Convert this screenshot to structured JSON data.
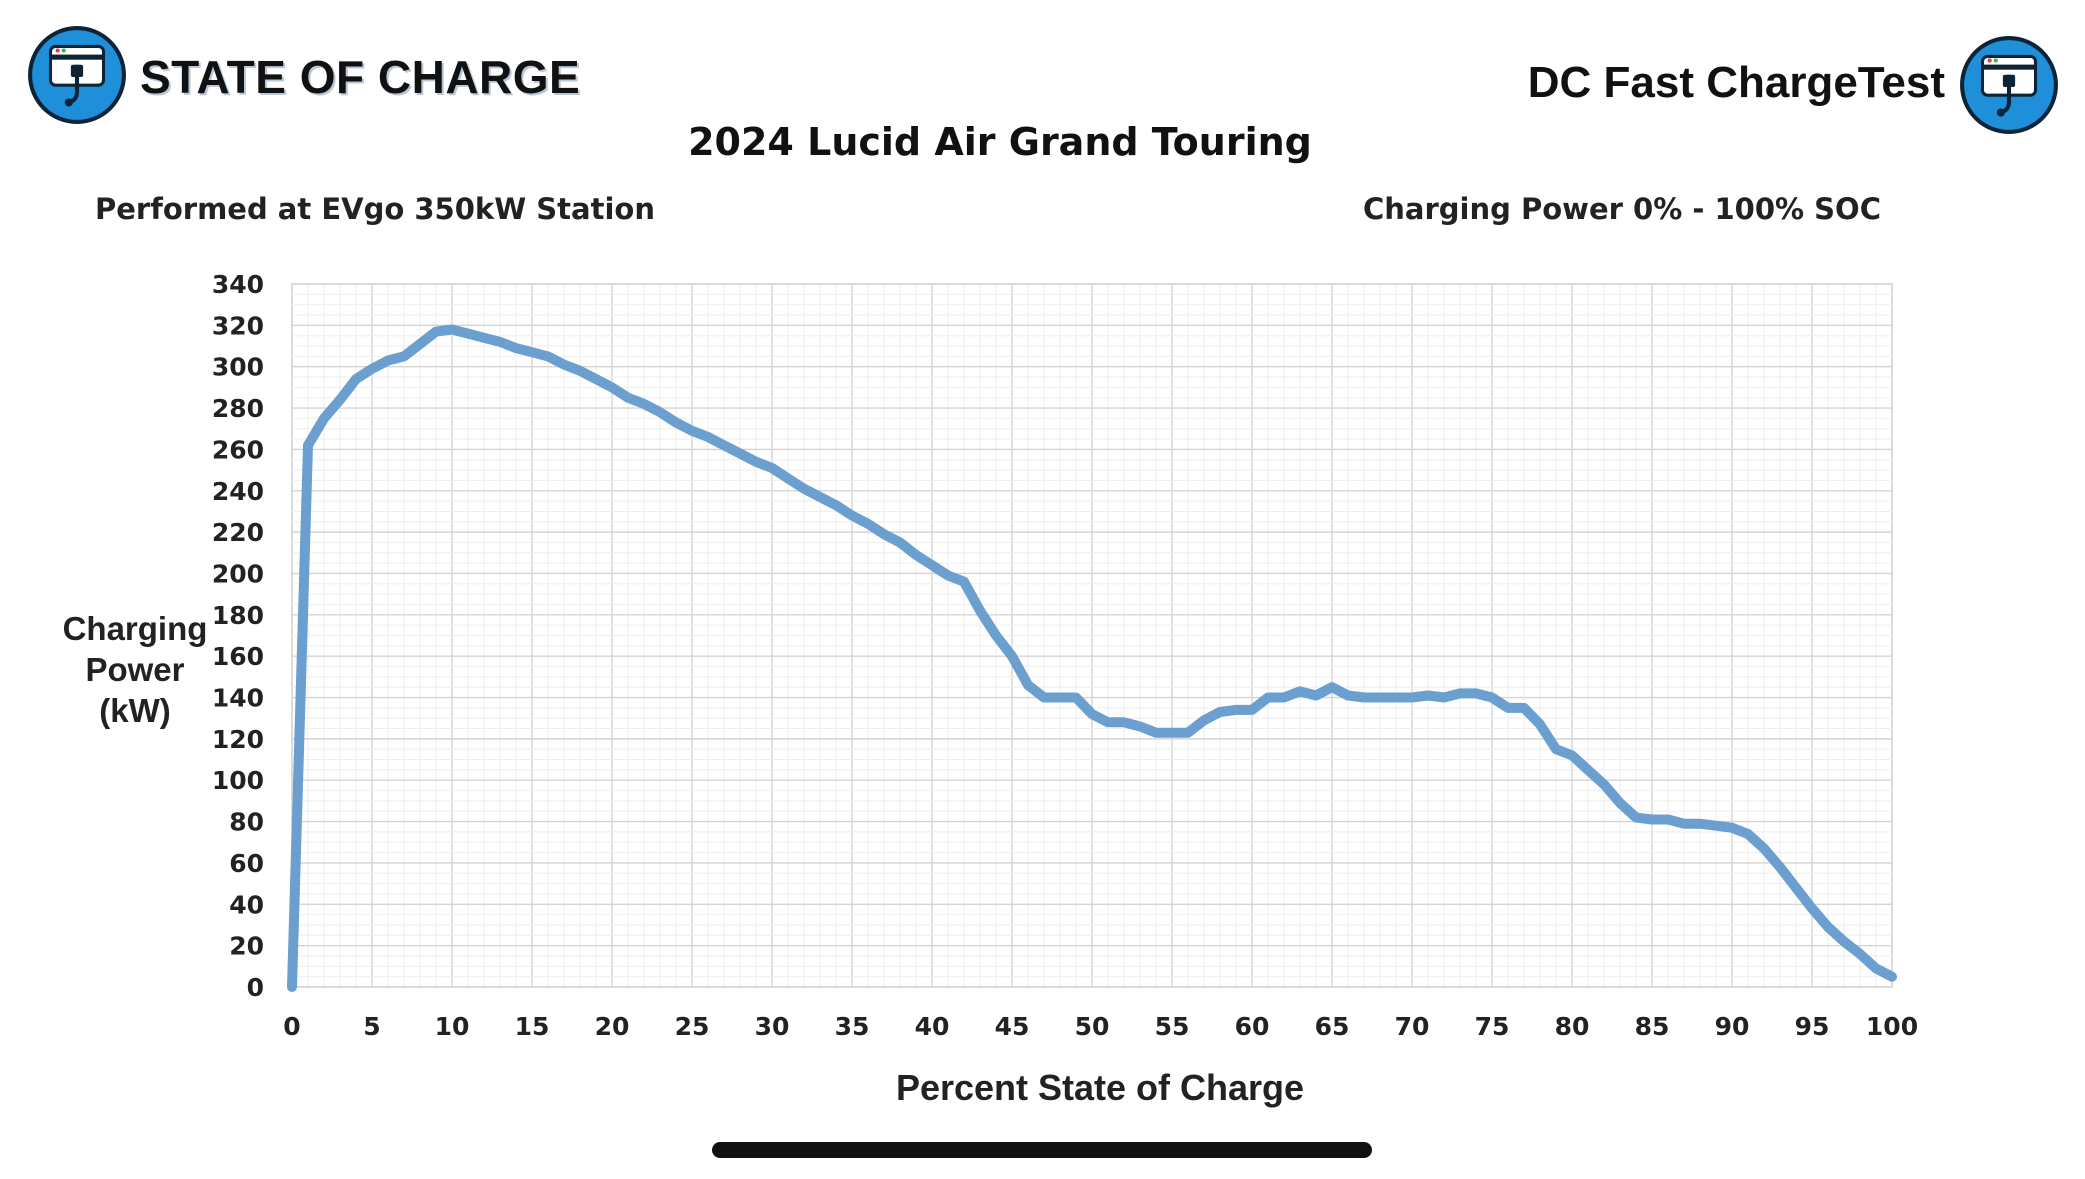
{
  "header": {
    "brand_left": "STATE OF CHARGE",
    "brand_right": "DC Fast ChargeTest",
    "logo_icon": "ev-charger-plug-icon",
    "title": "2024 Lucid Air Grand Touring",
    "subtitle_left": "Performed at EVgo 350kW Station",
    "subtitle_right": "Charging Power 0% - 100% SOC"
  },
  "colors": {
    "line": "#6a9fd0",
    "logo_ring": "#1e8fd8",
    "grid": "#dedede"
  },
  "chart_data": {
    "type": "line",
    "title": "2024 Lucid Air Grand Touring",
    "xlabel": "Percent State of Charge",
    "ylabel_lines": [
      "Charging",
      "Power",
      "(kW)"
    ],
    "xlim": [
      0,
      100
    ],
    "ylim": [
      0,
      340
    ],
    "xticks": [
      0,
      5,
      10,
      15,
      20,
      25,
      30,
      35,
      40,
      45,
      50,
      55,
      60,
      65,
      70,
      75,
      80,
      85,
      90,
      95,
      100
    ],
    "yticks": [
      0,
      20,
      40,
      60,
      80,
      100,
      120,
      140,
      160,
      180,
      200,
      220,
      240,
      260,
      280,
      300,
      320,
      340
    ],
    "grid": true,
    "series": [
      {
        "x": [
          0,
          1,
          2,
          3,
          4,
          5,
          6,
          7,
          8,
          9,
          10,
          11,
          12,
          13,
          14,
          15,
          16,
          17,
          18,
          19,
          20,
          21,
          22,
          23,
          24,
          25,
          26,
          27,
          28,
          29,
          30,
          31,
          32,
          33,
          34,
          35,
          36,
          37,
          38,
          39,
          40,
          41,
          42,
          43,
          44,
          45,
          46,
          47,
          48,
          49,
          50,
          51,
          52,
          53,
          54,
          55,
          56,
          57,
          58,
          59,
          60,
          61,
          62,
          63,
          64,
          65,
          66,
          67,
          68,
          69,
          70,
          71,
          72,
          73,
          74,
          75,
          76,
          77,
          78,
          79,
          80,
          81,
          82,
          83,
          84,
          85,
          86,
          87,
          88,
          89,
          90,
          91,
          92,
          93,
          94,
          95,
          96,
          97,
          98,
          99,
          100
        ],
        "y": [
          0,
          262,
          275,
          284,
          294,
          299,
          303,
          305,
          311,
          317,
          318,
          316,
          314,
          312,
          309,
          307,
          305,
          301,
          298,
          294,
          290,
          285,
          282,
          278,
          273,
          269,
          266,
          262,
          258,
          254,
          251,
          246,
          241,
          237,
          233,
          228,
          224,
          219,
          215,
          209,
          204,
          199,
          196,
          182,
          170,
          160,
          146,
          140,
          140,
          140,
          132,
          128,
          128,
          126,
          123,
          123,
          123,
          129,
          133,
          134,
          134,
          140,
          140,
          143,
          141,
          145,
          141,
          140,
          140,
          140,
          140,
          141,
          140,
          142,
          142,
          140,
          135,
          135,
          127,
          115,
          112,
          105,
          98,
          89,
          82,
          81,
          81,
          79,
          79,
          78,
          77,
          74,
          67,
          58,
          48,
          38,
          29,
          22,
          16,
          9,
          5
        ]
      }
    ]
  }
}
